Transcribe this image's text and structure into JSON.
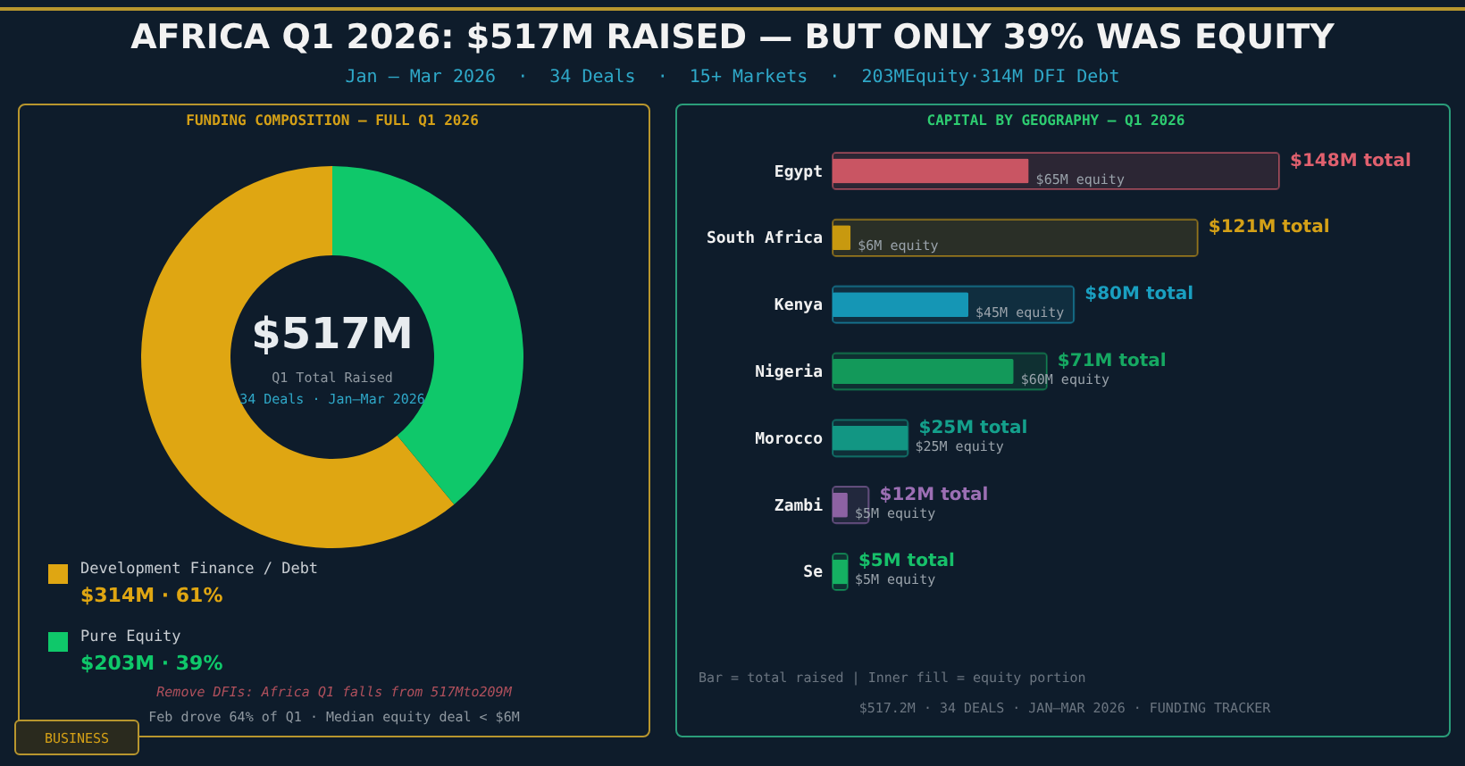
{
  "chart_data": [
    {
      "type": "other",
      "title": "AFRICA Q1 2026: $517M RAISED — BUT ONLY 39% WAS EQUITY",
      "subtitle": "Jan – Mar 2026  ·  34 Deals  ·  15+ Markets  ·  203MEquity·314M DFI Debt",
      "annotations": [
        "BUSINESS"
      ]
    },
    {
      "type": "donut",
      "title": "FUNDING COMPOSITION — FULL Q1 2026",
      "categories": [
        "Development Finance / Debt",
        "Pure Equity"
      ],
      "values": [
        61,
        39
      ],
      "colors": [
        "#dfa612",
        "#0fc86a"
      ],
      "value_labels": [
        "$314M · 61%",
        "$203M · 39%"
      ],
      "legend": "bottom",
      "annotations": [
        "$517M",
        "Q1 Total Raised",
        "34 Deals · Jan–Mar 2026",
        "Remove DFIs: Africa Q1 falls from 517Mto209M",
        "Feb drove 64% of Q1 · Median equity deal < $6M"
      ]
    },
    {
      "type": "bar",
      "orientation": "horizontal",
      "title": "CAPITAL BY GEOGRAPHY — Q1 2026",
      "categories": [
        "Egypt",
        "South Africa",
        "Kenya",
        "Nigeria",
        "Morocco",
        "Zambi",
        "Se"
      ],
      "series": [
        {
          "values": [
            148,
            121,
            80,
            71,
            25,
            12,
            5
          ],
          "colors": [
            "#e0606e",
            "#d4a017",
            "#1a9fc0",
            "#16a862",
            "#14a08c",
            "#9c6fb4",
            "#17c06a"
          ],
          "value_labels": [
            "$148M total",
            "$121M total",
            "$80M total",
            "$71M total",
            "$25M total",
            "$12M total",
            "$5M total"
          ]
        },
        {
          "values": [
            65,
            6,
            45,
            60,
            25,
            5,
            5
          ],
          "colors": [
            "#c95563",
            "#c8990f",
            "#1596b5",
            "#13995a",
            "#129683",
            "#8d62a3",
            "#15b062"
          ],
          "value_labels": [
            "$65M equity",
            "$6M equity",
            "$45M equity",
            "$60M equity",
            "$25M equity",
            "$5M equity",
            "$5M equity"
          ]
        }
      ],
      "annotations": [
        "Bar = total raised  |  Inner fill = equity portion",
        "$517.2M · 34 DEALS · JAN–MAR 2026 · FUNDING TRACKER"
      ]
    }
  ]
}
